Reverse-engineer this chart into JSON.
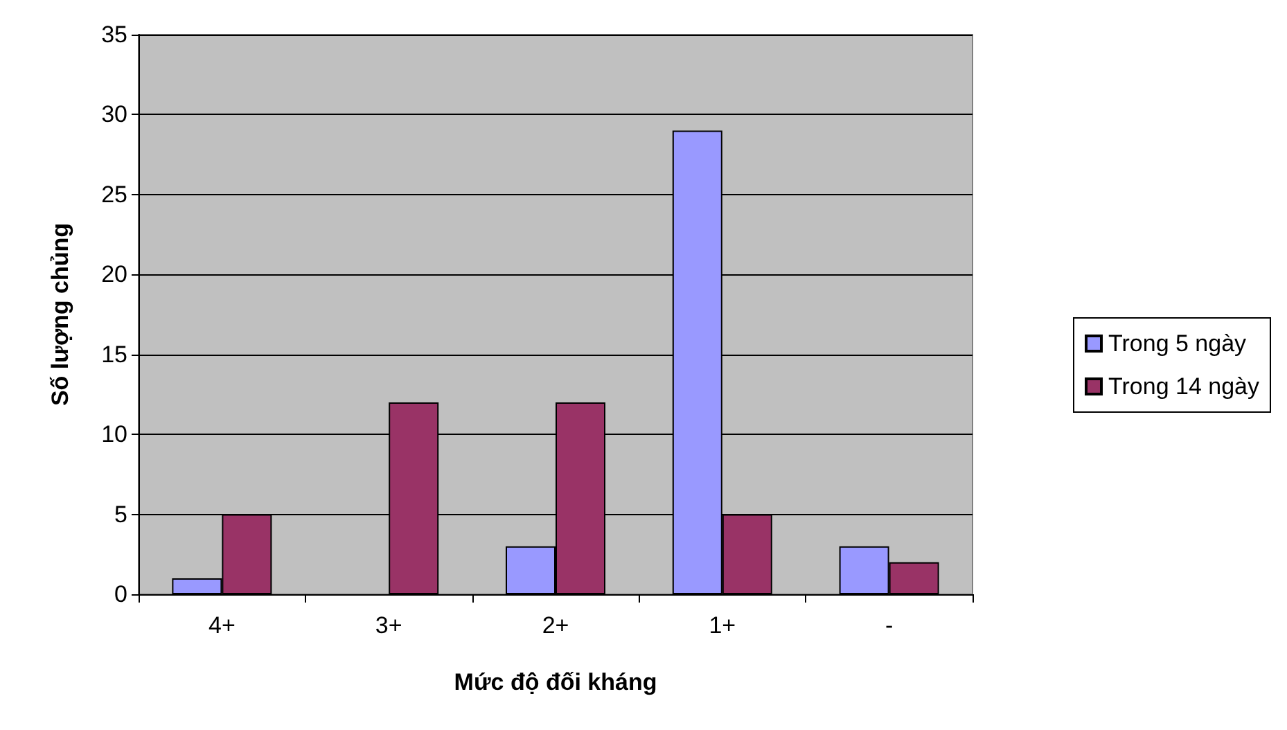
{
  "chart_data": {
    "type": "bar",
    "xlabel": "Mức độ đối kháng",
    "ylabel": "Số lượng chủng",
    "categories": [
      "4+",
      "3+",
      "2+",
      "1+",
      "-"
    ],
    "series": [
      {
        "name": "Trong 5 ngày",
        "color": "#9999ff",
        "values": [
          1,
          0,
          3,
          29,
          3
        ]
      },
      {
        "name": "Trong 14 ngày",
        "color": "#993366",
        "values": [
          5,
          12,
          12,
          5,
          2
        ]
      }
    ],
    "ylim": [
      0,
      35
    ],
    "yticks": [
      0,
      5,
      10,
      15,
      20,
      25,
      30,
      35
    ],
    "grid": "y",
    "legend": "right"
  }
}
